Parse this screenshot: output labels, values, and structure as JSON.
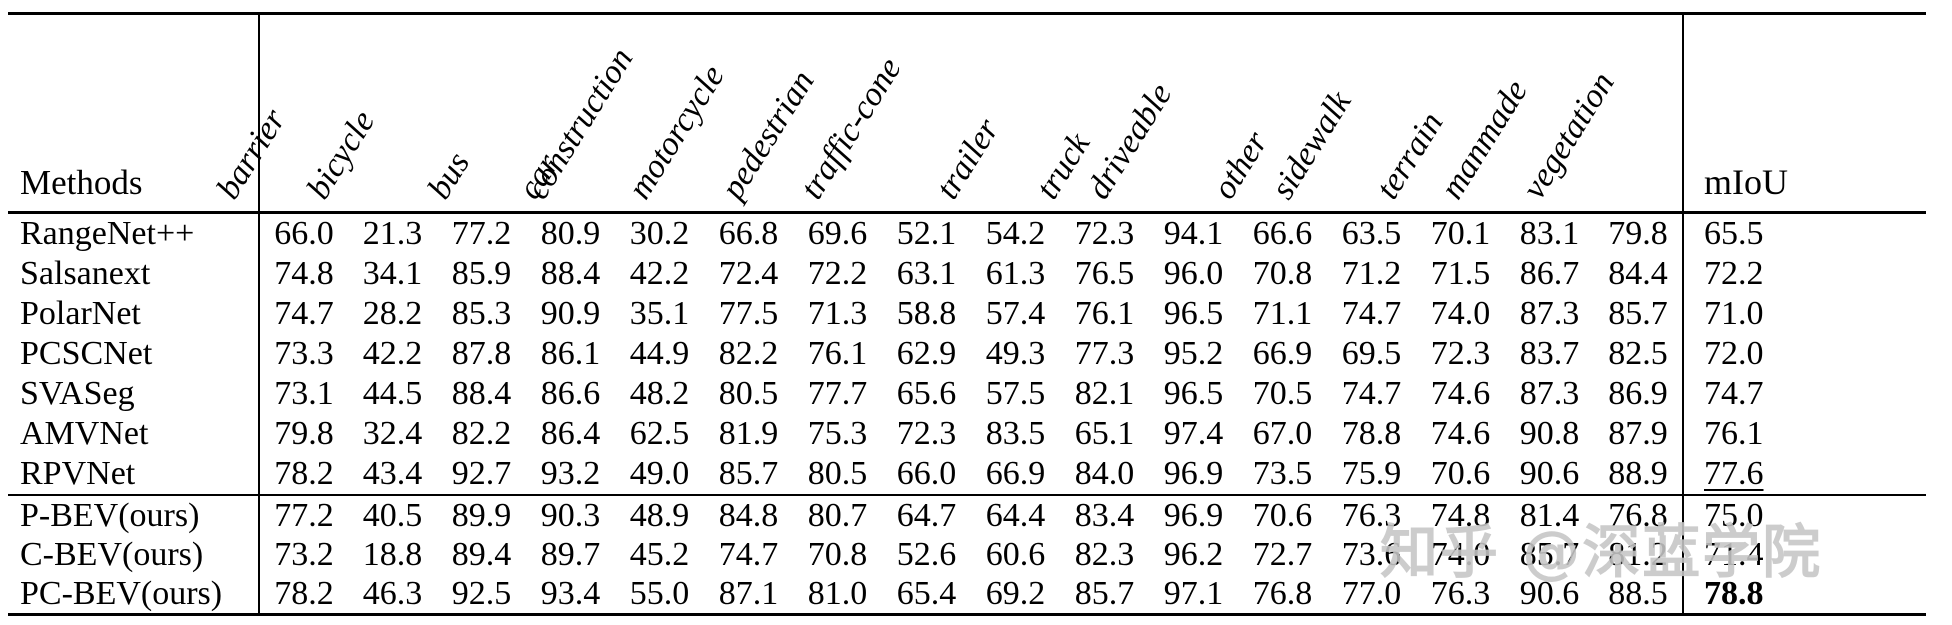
{
  "watermark": {
    "text": "知乎 @深蓝学院",
    "color": "#c6c6c6"
  },
  "table": {
    "methods_header": "Methods",
    "miou_header": "mIoU",
    "class_headers": [
      "barrier",
      "bicycle",
      "bus",
      "car",
      "construction",
      "motorcycle",
      "pedestrian",
      "traffic-cone",
      "trailer",
      "truck",
      "driveable",
      "other",
      "sidewalk",
      "terrain",
      "manmade",
      "vegetation"
    ],
    "groups": [
      {
        "rows": [
          {
            "method": "RangeNet++",
            "values": [
              "66.0",
              "21.3",
              "77.2",
              "80.9",
              "30.2",
              "66.8",
              "69.6",
              "52.1",
              "54.2",
              "72.3",
              "94.1",
              "66.6",
              "63.5",
              "70.1",
              "83.1",
              "79.8"
            ],
            "miou": "65.5",
            "miou_style": "normal"
          },
          {
            "method": "Salsanext",
            "values": [
              "74.8",
              "34.1",
              "85.9",
              "88.4",
              "42.2",
              "72.4",
              "72.2",
              "63.1",
              "61.3",
              "76.5",
              "96.0",
              "70.8",
              "71.2",
              "71.5",
              "86.7",
              "84.4"
            ],
            "miou": "72.2",
            "miou_style": "normal"
          },
          {
            "method": "PolarNet",
            "values": [
              "74.7",
              "28.2",
              "85.3",
              "90.9",
              "35.1",
              "77.5",
              "71.3",
              "58.8",
              "57.4",
              "76.1",
              "96.5",
              "71.1",
              "74.7",
              "74.0",
              "87.3",
              "85.7"
            ],
            "miou": "71.0",
            "miou_style": "normal"
          },
          {
            "method": "PCSCNet",
            "values": [
              "73.3",
              "42.2",
              "87.8",
              "86.1",
              "44.9",
              "82.2",
              "76.1",
              "62.9",
              "49.3",
              "77.3",
              "95.2",
              "66.9",
              "69.5",
              "72.3",
              "83.7",
              "82.5"
            ],
            "miou": "72.0",
            "miou_style": "normal"
          },
          {
            "method": "SVASeg",
            "values": [
              "73.1",
              "44.5",
              "88.4",
              "86.6",
              "48.2",
              "80.5",
              "77.7",
              "65.6",
              "57.5",
              "82.1",
              "96.5",
              "70.5",
              "74.7",
              "74.6",
              "87.3",
              "86.9"
            ],
            "miou": "74.7",
            "miou_style": "normal"
          },
          {
            "method": "AMVNet",
            "values": [
              "79.8",
              "32.4",
              "82.2",
              "86.4",
              "62.5",
              "81.9",
              "75.3",
              "72.3",
              "83.5",
              "65.1",
              "97.4",
              "67.0",
              "78.8",
              "74.6",
              "90.8",
              "87.9"
            ],
            "miou": "76.1",
            "miou_style": "normal"
          },
          {
            "method": "RPVNet",
            "values": [
              "78.2",
              "43.4",
              "92.7",
              "93.2",
              "49.0",
              "85.7",
              "80.5",
              "66.0",
              "66.9",
              "84.0",
              "96.9",
              "73.5",
              "75.9",
              "70.6",
              "90.6",
              "88.9"
            ],
            "miou": "77.6",
            "miou_style": "underline"
          }
        ]
      },
      {
        "rows": [
          {
            "method": "P-BEV(ours)",
            "values": [
              "77.2",
              "40.5",
              "89.9",
              "90.3",
              "48.9",
              "84.8",
              "80.7",
              "64.7",
              "64.4",
              "83.4",
              "96.9",
              "70.6",
              "76.3",
              "74.8",
              "81.4",
              "76.8"
            ],
            "miou": "75.0",
            "miou_style": "normal"
          },
          {
            "method": "C-BEV(ours)",
            "values": [
              "73.2",
              "18.8",
              "89.4",
              "89.7",
              "45.2",
              "74.7",
              "70.8",
              "52.6",
              "60.6",
              "82.3",
              "96.2",
              "72.7",
              "73.6",
              "74.0",
              "85.7",
              "81.2"
            ],
            "miou": "71.4",
            "miou_style": "normal"
          },
          {
            "method": "PC-BEV(ours)",
            "values": [
              "78.2",
              "46.3",
              "92.5",
              "93.4",
              "55.0",
              "87.1",
              "81.0",
              "65.4",
              "69.2",
              "85.7",
              "97.1",
              "76.8",
              "77.0",
              "76.3",
              "90.6",
              "88.5"
            ],
            "miou": "78.8",
            "miou_style": "bold"
          }
        ]
      }
    ]
  }
}
